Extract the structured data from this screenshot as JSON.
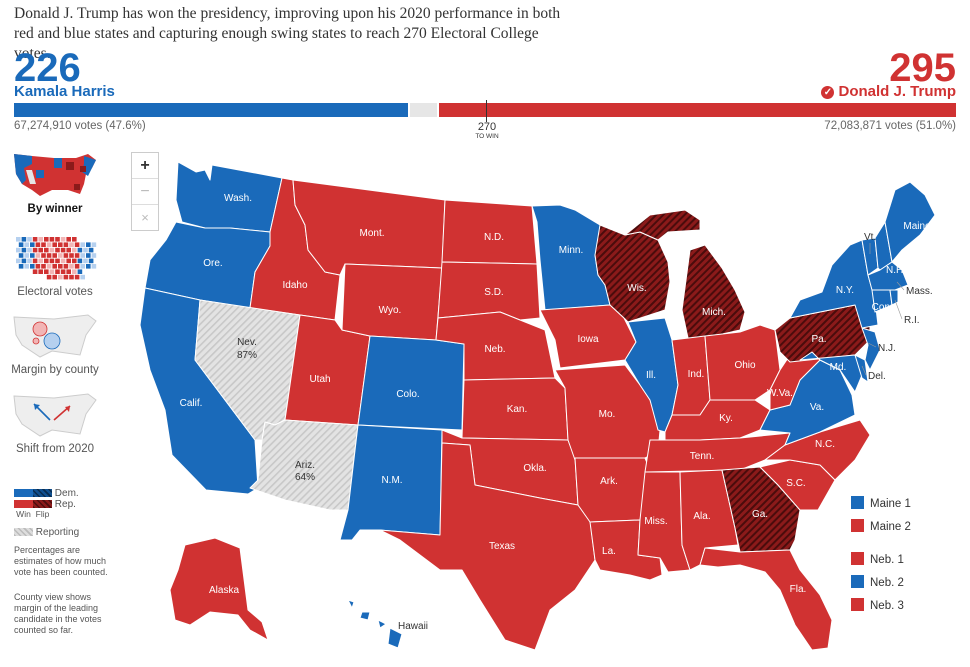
{
  "headline": "Donald J. Trump has won the presidency, improving upon his 2020 performance in both red and blue states and capturing enough swing states to reach 270 Electoral College votes.",
  "harris": {
    "ev": "226",
    "name": "Kamala Harris",
    "votes": "67,274,910 votes (47.6%)"
  },
  "trump": {
    "ev": "295",
    "name": "Donald J. Trump",
    "votes": "72,083,871 votes (51.0%)",
    "check": "✓"
  },
  "threshold": {
    "value": "270",
    "label": "TO WIN"
  },
  "progress": {
    "total_ev": 538,
    "dem_ev": 226,
    "rep_ev": 295
  },
  "colors": {
    "dem": "#1a6aba",
    "rep": "#d03232",
    "flip": "#8b1a1a",
    "reporting": "#e6e6e6"
  },
  "views": [
    {
      "label": "By winner",
      "active": true
    },
    {
      "label": "Electoral votes",
      "active": false
    },
    {
      "label": "Margin by county",
      "active": false
    },
    {
      "label": "Shift from 2020",
      "active": false
    }
  ],
  "legend": {
    "dem": "Dem.",
    "rep": "Rep.",
    "win": "Win",
    "flip": "Flip",
    "reporting": "Reporting"
  },
  "notes": {
    "n1": "Percentages are estimates of how much vote has been counted.",
    "n2": "County view shows margin of the leading candidate in the votes counted so far."
  },
  "zoom": {
    "in": "+",
    "out": "−",
    "reset": "×"
  },
  "districts": [
    {
      "label": "Maine 1",
      "party": "dem"
    },
    {
      "label": "Maine 2",
      "party": "rep"
    },
    {
      "label": "Neb. 1",
      "party": "rep"
    },
    {
      "label": "Neb. 2",
      "party": "dem"
    },
    {
      "label": "Neb. 3",
      "party": "rep"
    }
  ],
  "states": {
    "wash": "Wash.",
    "ore": "Ore.",
    "calif": "Calif.",
    "idaho": "Idaho",
    "nev": "Nev.",
    "nev_pct": "87%",
    "utah": "Utah",
    "ariz": "Ariz.",
    "ariz_pct": "64%",
    "mont": "Mont.",
    "wyo": "Wyo.",
    "colo": "Colo.",
    "nm": "N.M.",
    "nd": "N.D.",
    "sd": "S.D.",
    "neb": "Neb.",
    "kan": "Kan.",
    "okla": "Okla.",
    "texas": "Texas",
    "minn": "Minn.",
    "iowa": "Iowa",
    "mo": "Mo.",
    "ark": "Ark.",
    "la": "La.",
    "wis": "Wis.",
    "ill": "Ill.",
    "mich": "Mich.",
    "ind": "Ind.",
    "ohio": "Ohio",
    "ky": "Ky.",
    "tenn": "Tenn.",
    "miss": "Miss.",
    "ala": "Ala.",
    "ga": "Ga.",
    "fla": "Fla.",
    "sc": "S.C.",
    "nc": "N.C.",
    "va": "Va.",
    "wva": "W.Va.",
    "pa": "Pa.",
    "ny": "N.Y.",
    "vt": "Vt.",
    "nh": "N.H.",
    "maine": "Maine",
    "mass": "Mass.",
    "ri": "R.I.",
    "conn": "Conn.",
    "nj": "N.J.",
    "del": "Del.",
    "md": "Md.",
    "alaska": "Alaska",
    "hawaii": "Hawaii"
  }
}
